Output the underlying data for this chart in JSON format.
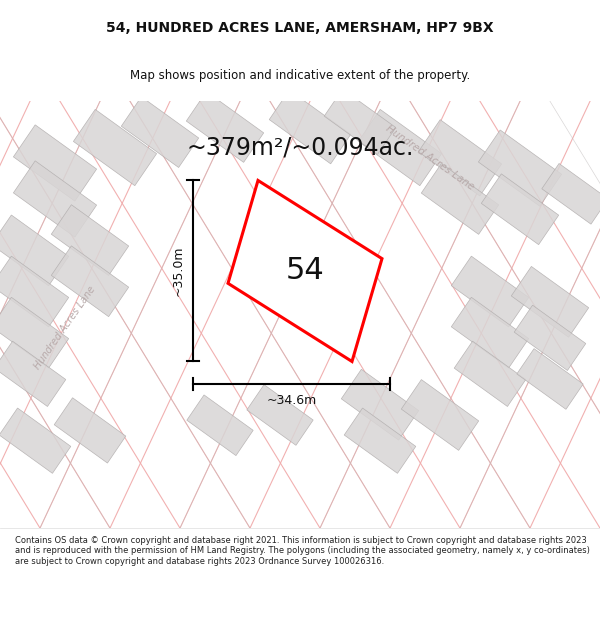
{
  "title": "54, HUNDRED ACRES LANE, AMERSHAM, HP7 9BX",
  "subtitle": "Map shows position and indicative extent of the property.",
  "area_text": "~379m²/~0.094ac.",
  "label_54": "54",
  "dim_vertical": "~35.0m",
  "dim_horizontal": "~34.6m",
  "footer": "Contains OS data © Crown copyright and database right 2021. This information is subject to Crown copyright and database rights 2023 and is reproduced with the permission of HM Land Registry. The polygons (including the associated geometry, namely x, y co-ordinates) are subject to Crown copyright and database rights 2023 Ordnance Survey 100026316.",
  "bg_color": "#f2f0f0",
  "map_bg": "#eeecec",
  "footer_bg": "#ffffff",
  "road_color_light": "#f0a8a8",
  "plot_color": "#ff0000",
  "plot_fill": "#ffffff",
  "street_label_color": "#b8aaaa",
  "title_color": "#111111",
  "footer_color": "#222222",
  "poly_face": "#d8d5d5",
  "poly_edge": "#b0acac"
}
